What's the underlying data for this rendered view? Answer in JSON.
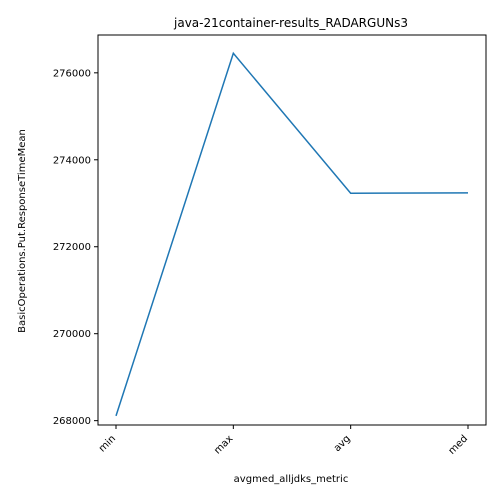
{
  "chart_data": {
    "type": "line",
    "title": "java-21container-results_RADARGUNs3",
    "xlabel": "avgmed_alljdks_metric",
    "ylabel": "BasicOperations.Put.ResponseTimeMean",
    "categories": [
      "min",
      "max",
      "avg",
      "med"
    ],
    "series": [
      {
        "values": [
          268110,
          276450,
          273230,
          273240
        ],
        "color": "#1f77b4"
      }
    ],
    "ylim": [
      267900,
      276870
    ],
    "yticks": [
      268000,
      270000,
      272000,
      274000,
      276000
    ],
    "grid": false,
    "legend": "none"
  }
}
